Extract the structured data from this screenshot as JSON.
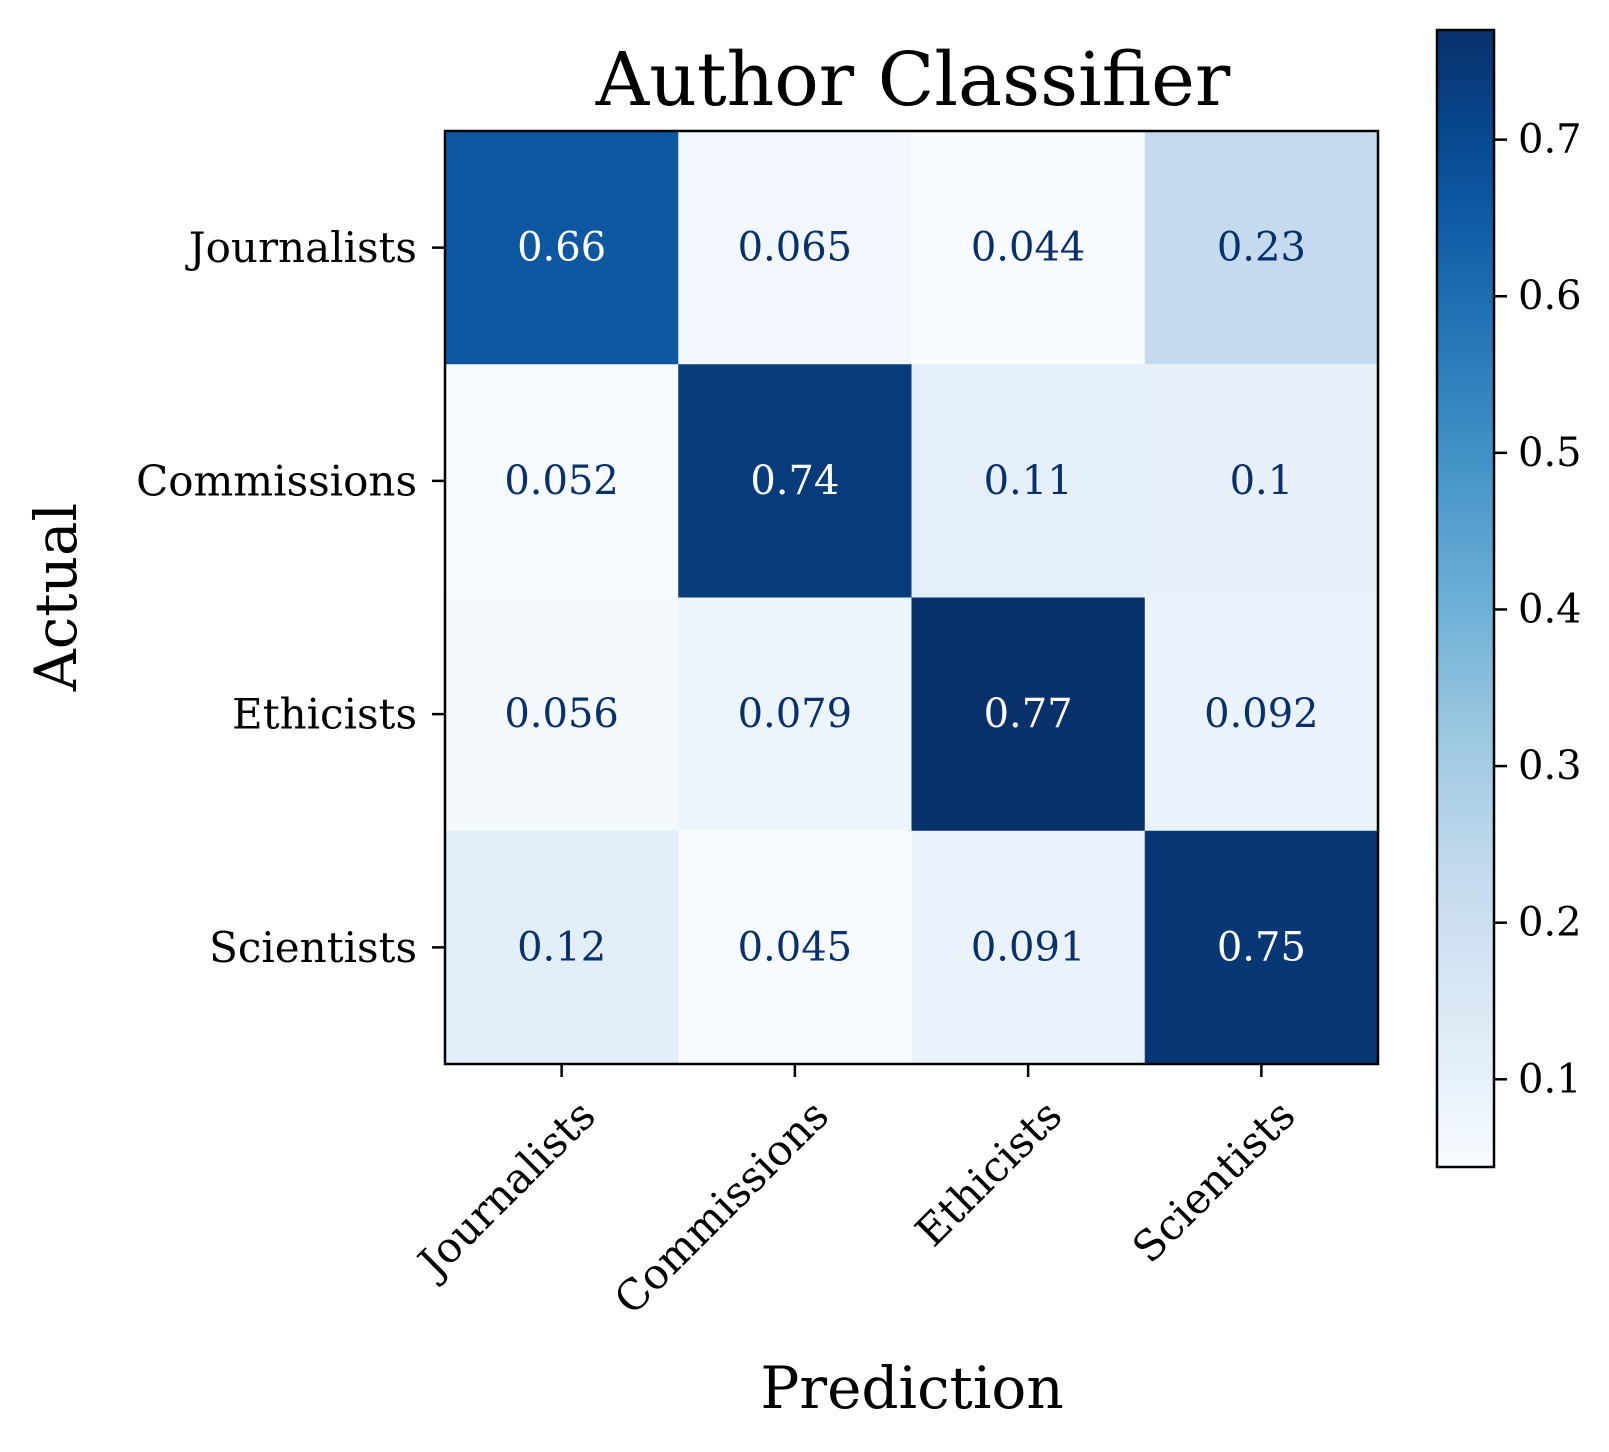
{
  "chart_data": {
    "type": "heatmap",
    "title": "Author Classifier",
    "xlabel": "Prediction",
    "ylabel": "Actual",
    "x_categories": [
      "Journalists",
      "Commissions",
      "Ethicists",
      "Scientists"
    ],
    "y_categories": [
      "Journalists",
      "Commissions",
      "Ethicists",
      "Scientists"
    ],
    "values": [
      [
        0.66,
        0.065,
        0.044,
        0.23
      ],
      [
        0.052,
        0.74,
        0.11,
        0.1
      ],
      [
        0.056,
        0.079,
        0.77,
        0.092
      ],
      [
        0.12,
        0.045,
        0.091,
        0.75
      ]
    ],
    "value_labels": [
      [
        "0.66",
        "0.065",
        "0.044",
        "0.23"
      ],
      [
        "0.052",
        "0.74",
        "0.11",
        "0.1"
      ],
      [
        "0.056",
        "0.079",
        "0.77",
        "0.092"
      ],
      [
        "0.12",
        "0.045",
        "0.091",
        "0.75"
      ]
    ],
    "colormap": "Blues",
    "colorbar": {
      "range": [
        0.044,
        0.77
      ],
      "ticks": [
        0.1,
        0.2,
        0.3,
        0.4,
        0.5,
        0.6,
        0.7
      ],
      "tick_labels": [
        "0.1",
        "0.2",
        "0.3",
        "0.4",
        "0.5",
        "0.6",
        "0.7"
      ]
    },
    "colors": {
      "dark_text": "#08306b",
      "light_text": "#ffffff",
      "frame": "#000000"
    }
  }
}
